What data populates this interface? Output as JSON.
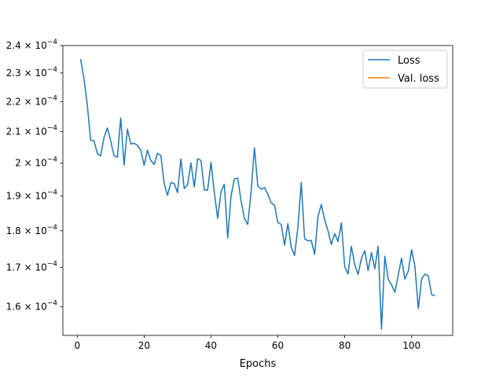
{
  "chart_data": {
    "type": "line",
    "xlabel": "Epochs",
    "ylabel": "",
    "xlim": [
      -4.3,
      112.3
    ],
    "ylim": [
      0.000153,
      0.00024
    ],
    "y_scale": "log",
    "x_ticks": [
      0,
      20,
      40,
      60,
      80,
      100
    ],
    "x_tick_labels": [
      "0",
      "20",
      "40",
      "60",
      "80",
      "100"
    ],
    "y_ticks": [
      0.00016,
      0.00017,
      0.00018,
      0.00019,
      0.0002,
      0.00021,
      0.00022,
      0.00023,
      0.00024
    ],
    "y_tick_mantissa": [
      "1.6",
      "1.7",
      "1.8",
      "1.9",
      "2",
      "2.1",
      "2.2",
      "2.3",
      "2.4"
    ],
    "y_tick_base": "× 10",
    "y_tick_exponent": "−4",
    "legend_position": "top-right",
    "grid": false,
    "series": [
      {
        "name": "Loss",
        "color": "#1f77b4",
        "x": [
          1,
          2,
          3,
          4,
          5,
          6,
          7,
          8,
          9,
          10,
          11,
          12,
          13,
          14,
          15,
          16,
          17,
          18,
          19,
          20,
          21,
          22,
          23,
          24,
          25,
          26,
          27,
          28,
          29,
          30,
          31,
          32,
          33,
          34,
          35,
          36,
          37,
          38,
          39,
          40,
          41,
          42,
          43,
          44,
          45,
          46,
          47,
          48,
          49,
          50,
          51,
          52,
          53,
          54,
          55,
          56,
          57,
          58,
          59,
          60,
          61,
          62,
          63,
          64,
          65,
          66,
          67,
          68,
          69,
          70,
          71,
          72,
          73,
          74,
          75,
          76,
          77,
          78,
          79,
          80,
          81,
          82,
          83,
          84,
          85,
          86,
          87,
          88,
          89,
          90,
          91,
          92,
          93,
          94,
          95,
          96,
          97,
          98,
          99,
          100,
          101,
          102,
          103,
          104,
          105,
          106,
          107
        ],
        "values": [
          0.000235,
          0.000228,
          0.000219,
          0.0002072,
          0.000207,
          0.000203,
          0.0002022,
          0.000208,
          0.0002112,
          0.000207,
          0.0002022,
          0.0002018,
          0.0002145,
          0.0001993,
          0.0002108,
          0.000206,
          0.0002062,
          0.0002055,
          0.000204,
          0.0001993,
          0.000204,
          0.0002008,
          0.0001995,
          0.000203,
          0.0002023,
          0.0001937,
          0.0001902,
          0.000194,
          0.0001937,
          0.000191,
          0.0002012,
          0.0001922,
          0.0001933,
          0.0002,
          0.0001927,
          0.0002013,
          0.0002008,
          0.0001918,
          0.0001917,
          0.0002002,
          0.000191,
          0.0001835,
          0.0001912,
          0.0001935,
          0.000178,
          0.00019,
          0.0001951,
          0.0001953,
          0.0001885,
          0.0001835,
          0.0001818,
          0.0001912,
          0.0002048,
          0.000193,
          0.000192,
          0.0001925,
          0.0001905,
          0.000188,
          0.0001873,
          0.0001823,
          0.0001818,
          0.000176,
          0.000182,
          0.0001755,
          0.0001732,
          0.000181,
          0.000194,
          0.0001778,
          0.0001772,
          0.0001773,
          0.0001735,
          0.000184,
          0.0001875,
          0.000183,
          0.00018,
          0.0001762,
          0.0001792,
          0.000177,
          0.0001822,
          0.0001702,
          0.0001683,
          0.0001757,
          0.0001707,
          0.0001682,
          0.0001725,
          0.0001745,
          0.0001692,
          0.000174,
          0.0001697,
          0.0001757,
          0.0001545,
          0.000173,
          0.000167,
          0.0001655,
          0.0001636,
          0.000168,
          0.0001725,
          0.000167,
          0.000169,
          0.0001748,
          0.0001703,
          0.0001595,
          0.000167,
          0.0001683,
          0.0001678,
          0.000163,
          0.0001627
        ]
      }
    ],
    "legend": [
      {
        "name": "Loss",
        "color": "#1f77b4"
      },
      {
        "name": "Val. loss",
        "color": "#ff7f0e"
      }
    ]
  }
}
